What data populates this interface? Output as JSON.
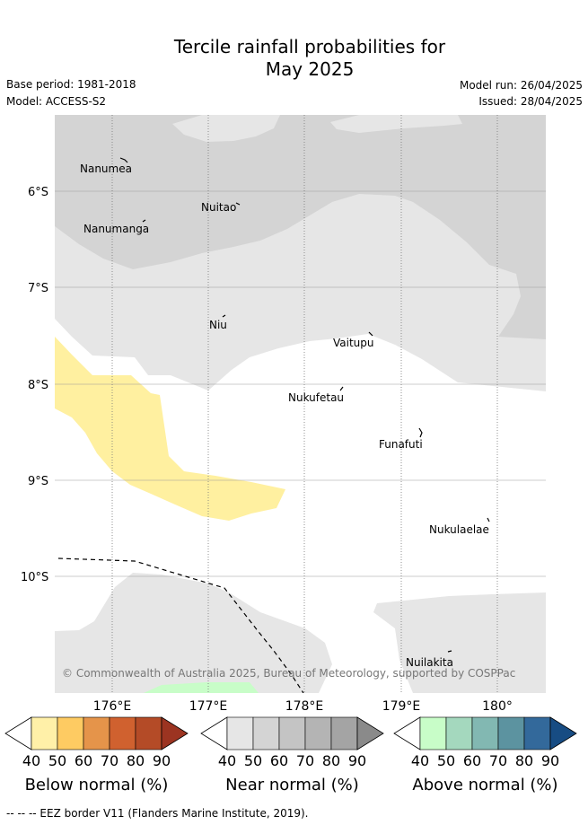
{
  "title_line1": "Tercile rainfall probabilities for",
  "title_line2": "May 2025",
  "base_period": "Base period: 1981-2018",
  "model": "Model: ACCESS-S2",
  "model_run": "Model run: 26/04/2025",
  "issued": "Issued: 28/04/2025",
  "latitude_labels": [
    "6°S",
    "7°S",
    "8°S",
    "9°S",
    "10°S"
  ],
  "longitude_labels": [
    "176°E",
    "177°E",
    "178°E",
    "179°E",
    "180°"
  ],
  "places": [
    "Nanumea",
    "Nuitao",
    "Nanumanga",
    "Niu",
    "Vaitupu",
    "Nukufetau",
    "Funafuti",
    "Nukulaelae",
    "Nuilakita"
  ],
  "copyright": "© Commonwealth of Australia 2025, Bureau of Meteorology, supported by COSPPac",
  "colorbars": [
    {
      "label": "Below normal (%)",
      "ticks": [
        "40",
        "50",
        "60",
        "70",
        "80",
        "90"
      ],
      "colors": [
        "#fff0a8",
        "#fecb62",
        "#e5944a",
        "#d0612f",
        "#b44b27",
        "#9c3421"
      ]
    },
    {
      "label": "Near normal (%)",
      "ticks": [
        "40",
        "50",
        "60",
        "70",
        "80",
        "90"
      ],
      "colors": [
        "#e6e6e6",
        "#d4d4d4",
        "#c4c4c4",
        "#b4b4b4",
        "#a4a4a4",
        "#8a8a8a"
      ]
    },
    {
      "label": "Above normal (%)",
      "ticks": [
        "40",
        "50",
        "60",
        "70",
        "80",
        "90"
      ],
      "colors": [
        "#c8fdc8",
        "#a4d8be",
        "#82b8b2",
        "#5c93a0",
        "#33699b",
        "#174c83"
      ]
    }
  ],
  "footer": "-- -- -- EEZ border V11 (Flanders Marine Institute, 2019)."
}
